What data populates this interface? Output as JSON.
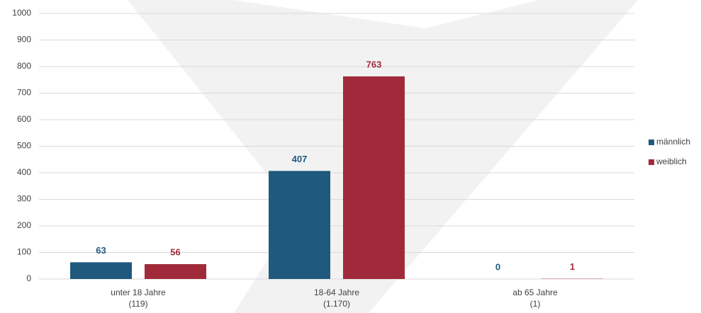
{
  "chart_data": {
    "type": "bar",
    "categories": [
      [
        "unter 18 Jahre",
        "(119)"
      ],
      [
        "18-64 Jahre",
        "(1.170)"
      ],
      [
        "ab 65 Jahre",
        "(1)"
      ]
    ],
    "series": [
      {
        "name": "männlich",
        "color": "#1f5a7e",
        "values": [
          63,
          407,
          0
        ]
      },
      {
        "name": "weiblich",
        "color": "#a12a3a",
        "values": [
          56,
          763,
          1
        ]
      }
    ],
    "ylim": [
      0,
      1000
    ],
    "yticks": [
      0,
      100,
      200,
      300,
      400,
      500,
      600,
      700,
      800,
      900,
      1000
    ],
    "grid": true,
    "legend": "right"
  }
}
